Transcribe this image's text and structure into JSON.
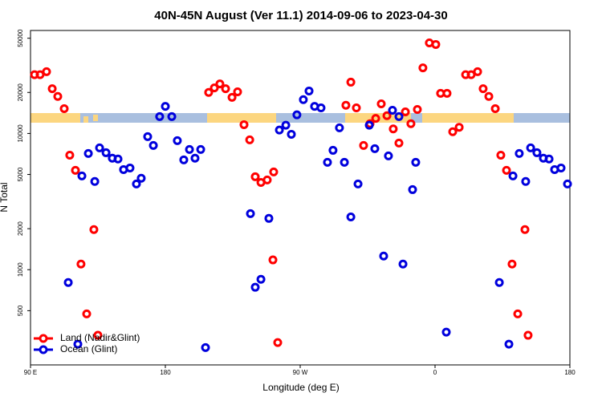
{
  "chart_data": {
    "type": "scatter",
    "title": "40N-45N August (Ver 11.1)   2014-09-06 to 2023-04-30",
    "x_label": "Longitude (deg E)",
    "y_label": "N Total",
    "xlim": [
      90,
      450
    ],
    "ylim": [
      200,
      57000
    ],
    "log_y": true,
    "legend": "bottom-left",
    "xticks": [
      {
        "value": 90,
        "label": "90 E"
      },
      180,
      {
        "value": 270,
        "label": "90 W"
      },
      {
        "value": 360,
        "label": "0"
      },
      {
        "value": 450,
        "label": "180"
      }
    ],
    "xticks_extra": [
      {
        "value": 360,
        "label": "0"
      }
    ],
    "yticks": [
      500,
      1000,
      2000,
      5000,
      10000,
      20000,
      50000
    ],
    "series": [
      {
        "name": "Land (Nadir&Glint)",
        "color": "#ff0000",
        "x": [
          92.7,
          96.4,
          100.7,
          104.5,
          108.2,
          112.5,
          116.2,
          120.0,
          123.7,
          127.5,
          132.3,
          135.0,
          208.9,
          212.7,
          216.4,
          220.2,
          224.5,
          228.2,
          232.5,
          236.3,
          240.0,
          243.8,
          248.0,
          252.3,
          251.8,
          255.0,
          300.5,
          303.8,
          307.5,
          312.3,
          316.6,
          320.4,
          324.1,
          327.9,
          332.1,
          335.9,
          340.2,
          343.9,
          348.2,
          351.9,
          356.2,
          360.5,
          363.7,
          368.0,
          371.8,
          376.1,
          380.4,
          384.1,
          388.4,
          392.1,
          395.9,
          400.2,
          403.9,
          407.7,
          411.4,
          415.2,
          420.0,
          422.1
        ],
        "values": [
          27000,
          27000,
          28400,
          21300,
          18700,
          15200,
          6930,
          5360,
          1100,
          474,
          1970,
          330,
          20000,
          21600,
          23100,
          21300,
          18400,
          20200,
          11600,
          8970,
          4810,
          4370,
          4560,
          5220,
          1180,
          292,
          16100,
          23800,
          15400,
          8160,
          11800,
          12900,
          16500,
          13500,
          10800,
          8500,
          14400,
          11800,
          15000,
          30300,
          46200,
          45000,
          19700,
          19700,
          10300,
          11100,
          27000,
          27000,
          28400,
          21300,
          18700,
          15200,
          6930,
          5360,
          1100,
          474,
          1970,
          330
        ]
      },
      {
        "name": "Ocean (Glint)",
        "color": "#0000dd",
        "x": [
          115.2,
          121.6,
          124.3,
          128.6,
          132.9,
          136.1,
          140.4,
          144.6,
          148.4,
          152.1,
          156.4,
          160.7,
          163.9,
          168.2,
          172.0,
          176.2,
          180.0,
          184.3,
          188.0,
          192.3,
          196.1,
          199.8,
          203.6,
          206.8,
          236.8,
          240.0,
          243.8,
          249.1,
          256.1,
          260.4,
          264.1,
          267.8,
          272.1,
          275.9,
          279.6,
          283.9,
          288.2,
          291.9,
          296.2,
          299.5,
          303.8,
          308.6,
          316.1,
          319.8,
          325.7,
          328.9,
          331.6,
          335.9,
          338.6,
          345.0,
          347.1,
          367.5,
          402.9,
          409.3,
          412.0,
          416.2,
          420.5,
          423.8,
          428.0,
          432.3,
          436.1,
          439.8,
          444.1,
          448.4
        ],
        "values": [
          805,
          284,
          4880,
          7130,
          4440,
          7840,
          7220,
          6580,
          6490,
          5430,
          5580,
          4260,
          4690,
          9470,
          8160,
          13300,
          15800,
          13300,
          8850,
          6400,
          7630,
          6580,
          7630,
          268,
          2580,
          743,
          850,
          2380,
          10600,
          11500,
          9860,
          13700,
          17700,
          20500,
          15800,
          15400,
          6140,
          7520,
          11000,
          6140,
          2440,
          4260,
          11500,
          7730,
          1260,
          6840,
          14800,
          13300,
          1100,
          3870,
          6140,
          348,
          805,
          284,
          4880,
          7130,
          4440,
          7840,
          7220,
          6580,
          6490,
          5430,
          5580,
          4260
        ]
      }
    ]
  }
}
